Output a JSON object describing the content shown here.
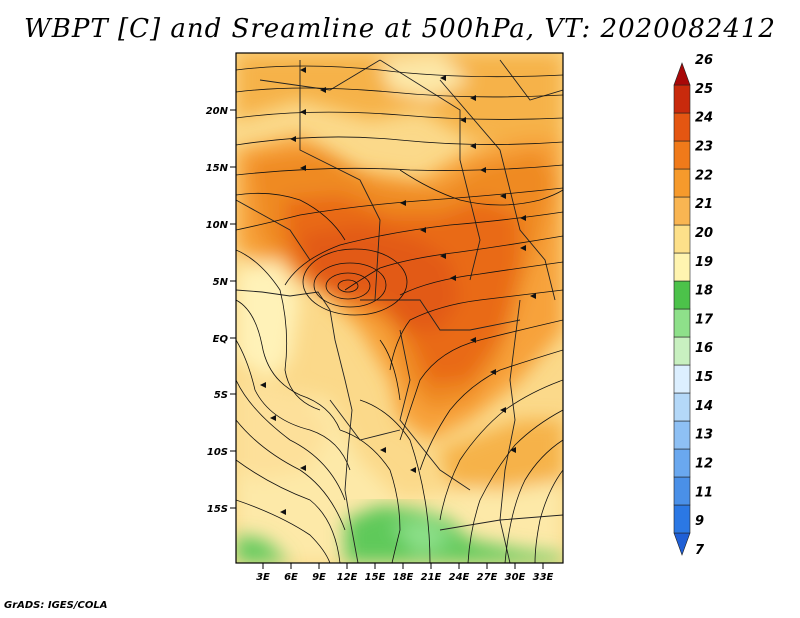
{
  "title": "WBPT [C] and Sreamline at 500hPa, VT: 2020082412",
  "footer": "GrADS: IGES/COLA",
  "map": {
    "lat_labels": [
      "20N",
      "15N",
      "10N",
      "5N",
      "EQ",
      "5S",
      "10S",
      "15S"
    ],
    "lon_labels": [
      "3E",
      "6E",
      "9E",
      "12E",
      "15E",
      "18E",
      "21E",
      "24E",
      "27E",
      "30E",
      "33E"
    ]
  },
  "colorbar": {
    "labels": [
      "7",
      "9",
      "11",
      "12",
      "13",
      "14",
      "15",
      "16",
      "17",
      "18",
      "19",
      "20",
      "21",
      "22",
      "23",
      "24",
      "25",
      "26"
    ],
    "colors": [
      "#1f5fd6",
      "#2b78e4",
      "#4a90e8",
      "#6aa8ef",
      "#8ec0f4",
      "#b4d8f8",
      "#dcefff",
      "#c8f0c0",
      "#8ee08a",
      "#4cc24a",
      "#fff4b0",
      "#fde08a",
      "#f9b552",
      "#f69a2c",
      "#f07a1a",
      "#e45612",
      "#c82a0c",
      "#a80808"
    ]
  }
}
